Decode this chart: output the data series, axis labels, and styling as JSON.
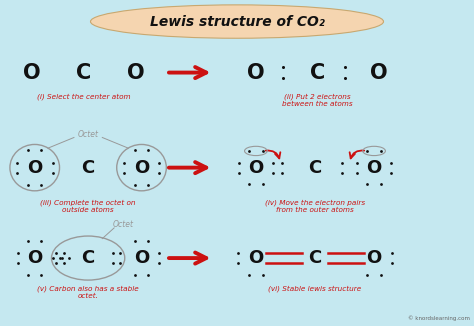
{
  "title": "Lewis structure of CO₂",
  "background_color": "#c5e8f0",
  "title_bg": "#f5d5b0",
  "red_color": "#cc1111",
  "gray_color": "#999999",
  "black": "#111111",
  "watermark": "© knordslearning.com",
  "labels": {
    "i": "(i) Select the center atom",
    "ii": "(ii) Put 2 electrons\nbetween the atoms",
    "iii": "(iii) Complete the octet on\noutside atoms",
    "iv": "(iv) Move the electron pairs\nfrom the outer atoms",
    "v": "(v) Carbon also has a stable\noctet.",
    "vi": "(vi) Stable lewis structure"
  }
}
